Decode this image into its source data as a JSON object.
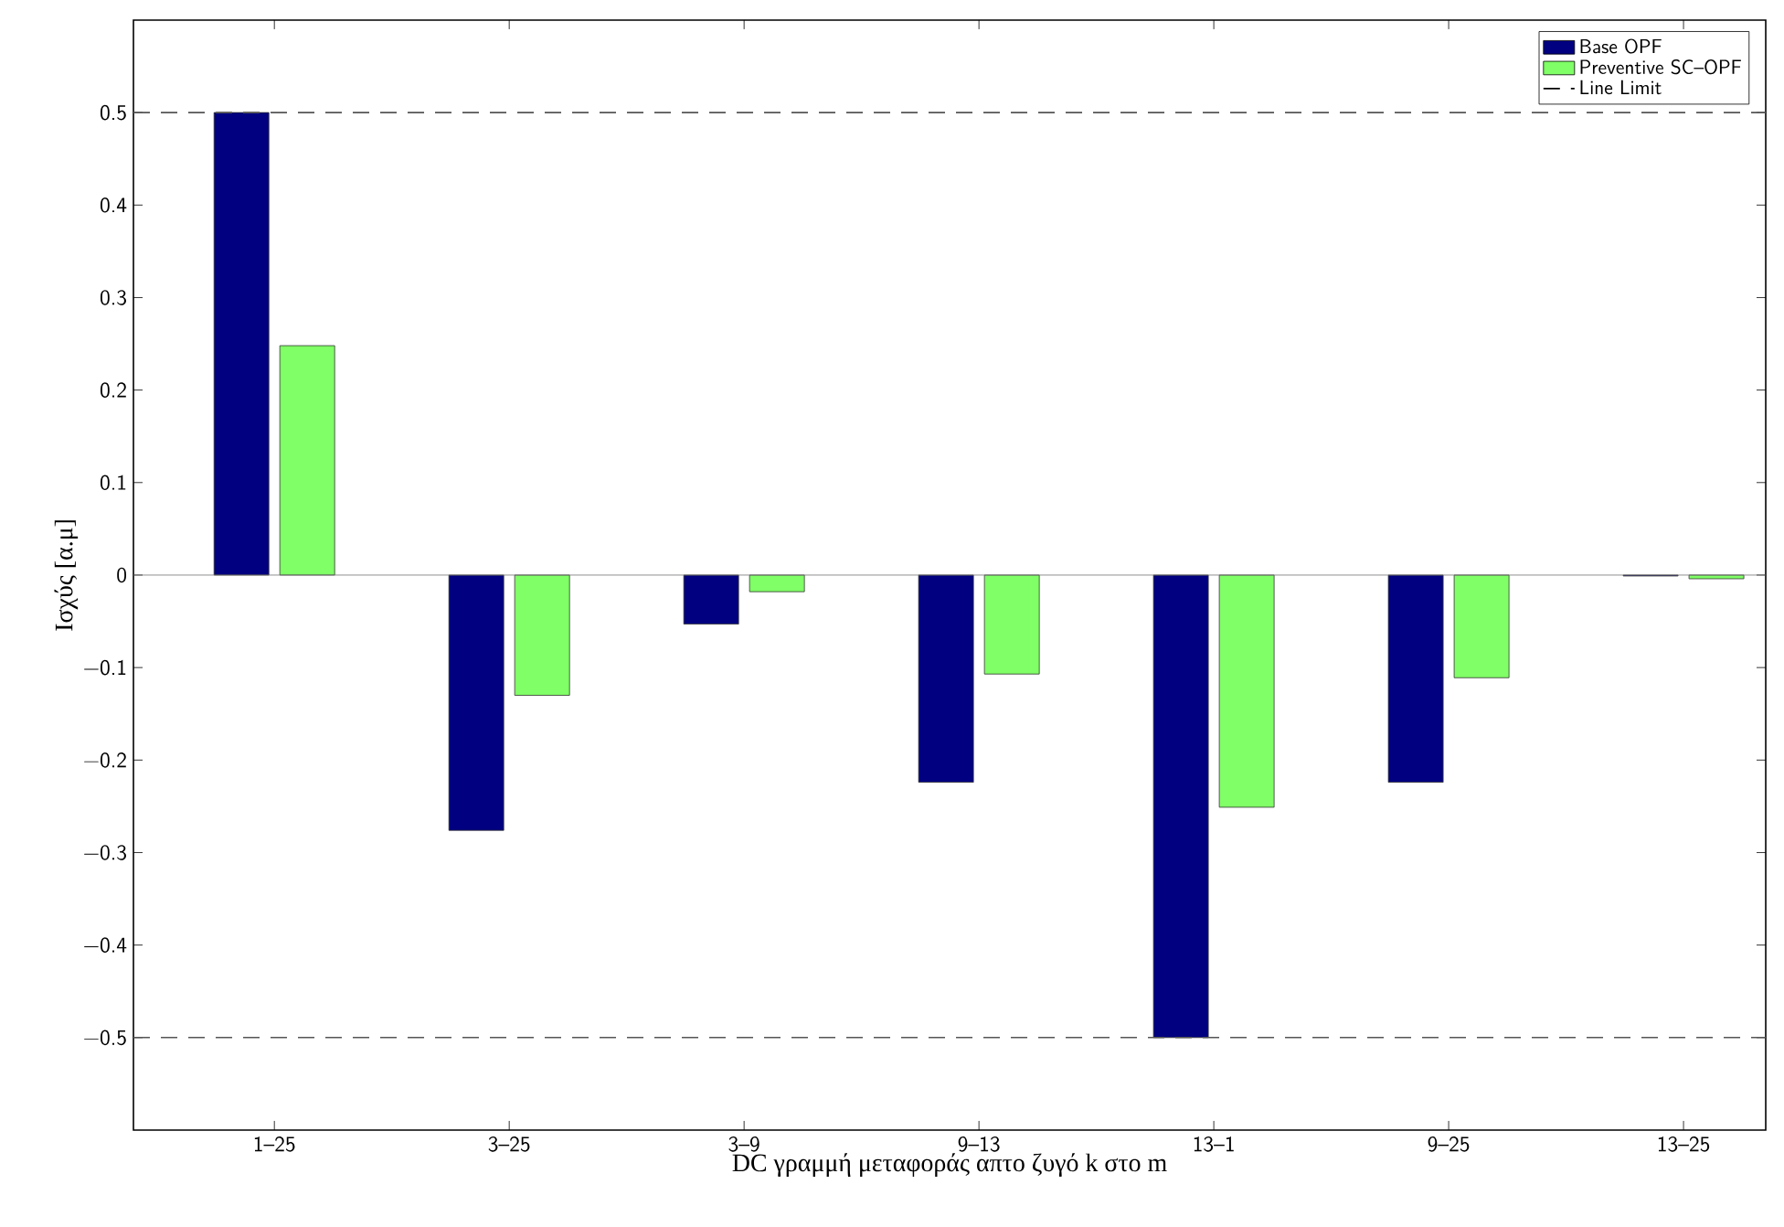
{
  "chart_data": {
    "type": "bar",
    "xlabel": "DC γραμμή μεταφοράς απτο ζυγό k στο m",
    "ylabel": "Ισχύς [α.μ]",
    "categories": [
      "1–25",
      "3–25",
      "3–9",
      "9–13",
      "13–1",
      "9–25",
      "13–25"
    ],
    "series": [
      {
        "name": "Base OPF",
        "color": "#000080",
        "values": [
          0.5,
          -0.276,
          -0.053,
          -0.224,
          -0.5,
          -0.224,
          -0.001
        ]
      },
      {
        "name": "Preventive SC–OPF",
        "color": "#80ff66",
        "values": [
          0.248,
          -0.13,
          -0.018,
          -0.107,
          -0.251,
          -0.111,
          -0.004
        ]
      }
    ],
    "ylim": [
      -0.6,
      0.6
    ],
    "yticks": [
      {
        "value": -0.5,
        "label": "−0.5"
      },
      {
        "value": -0.4,
        "label": "−0.4"
      },
      {
        "value": -0.3,
        "label": "−0.3"
      },
      {
        "value": -0.2,
        "label": "−0.2"
      },
      {
        "value": -0.1,
        "label": "−0.1"
      },
      0,
      0.1,
      0.2,
      0.3,
      0.4,
      0.5
    ],
    "ref_lines": [
      {
        "axis": "y",
        "value": 0.5,
        "label": "Line Limit",
        "color": "#555555",
        "line_style": "dashed"
      },
      {
        "axis": "y",
        "value": -0.5,
        "color": "#555555",
        "line_style": "dashed"
      }
    ],
    "legend": "top right",
    "grid": false
  }
}
